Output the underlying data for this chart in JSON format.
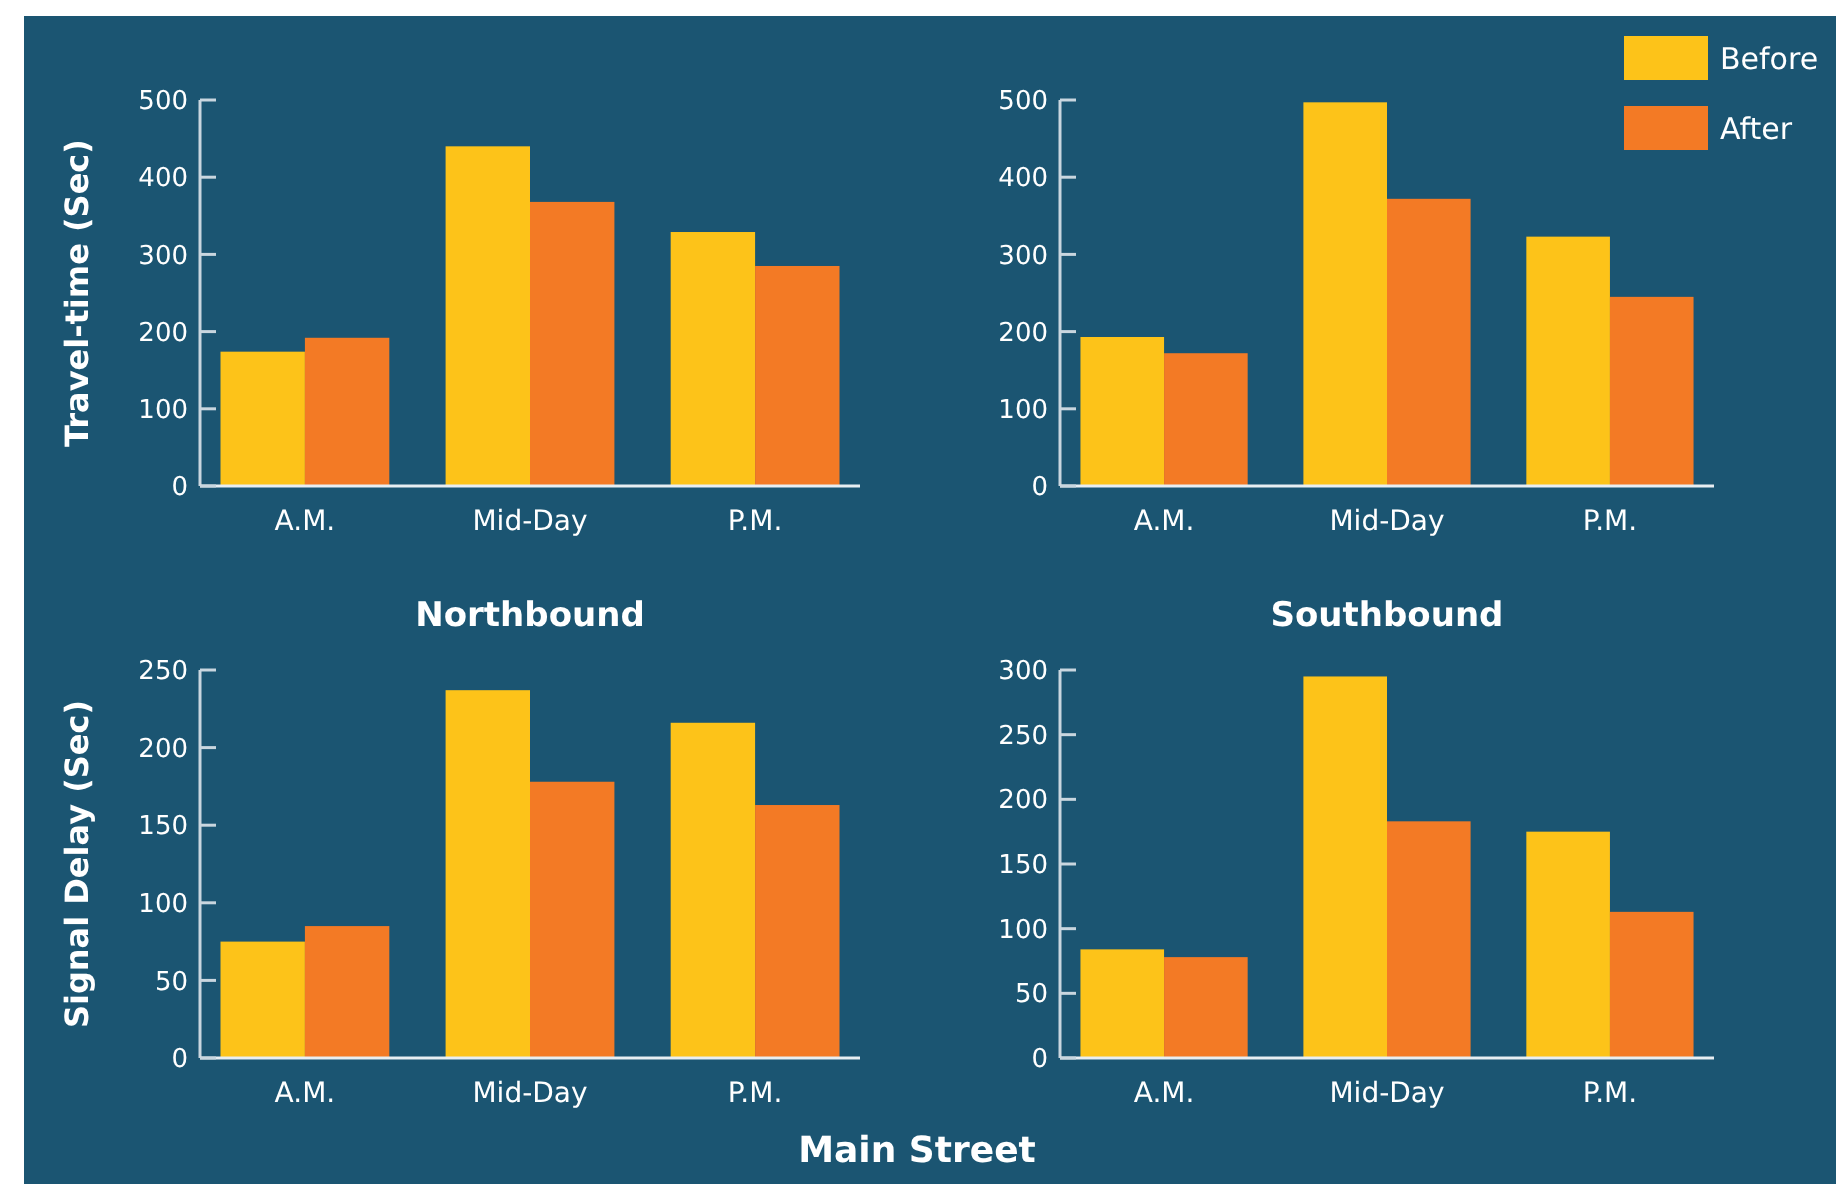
{
  "chart_data": [
    {
      "type": "bar",
      "ylabel": "Travel-time (Sec)",
      "xlabel": "Northbound",
      "categories": [
        "A.M.",
        "Mid-Day",
        "P.M."
      ],
      "ylim": [
        0,
        500
      ],
      "yticks": [
        0,
        100,
        200,
        300,
        400,
        500
      ],
      "legend": false,
      "series": [
        {
          "color": "#fdc319",
          "values": [
            174,
            440,
            329
          ]
        },
        {
          "color": "#f37a25",
          "values": [
            192,
            368,
            285
          ]
        }
      ]
    },
    {
      "type": "bar",
      "xlabel": "Southbound",
      "categories": [
        "A.M.",
        "Mid-Day",
        "P.M."
      ],
      "ylim": [
        0,
        500
      ],
      "yticks": [
        0,
        100,
        200,
        300,
        400,
        500
      ],
      "legend": "top right",
      "series": [
        {
          "name": "Before",
          "color": "#fdc319",
          "values": [
            193,
            497,
            323
          ]
        },
        {
          "name": "After",
          "color": "#f37a25",
          "values": [
            172,
            372,
            245
          ]
        }
      ]
    },
    {
      "type": "bar",
      "ylabel": "Signal Delay (Sec)",
      "xlabel": "Main Street",
      "categories": [
        "A.M.",
        "Mid-Day",
        "P.M."
      ],
      "ylim": [
        0,
        250
      ],
      "yticks": [
        0,
        50,
        100,
        150,
        200,
        250
      ],
      "legend": false,
      "series": [
        {
          "color": "#fdc319",
          "values": [
            75,
            237,
            216
          ]
        },
        {
          "color": "#f37a25",
          "values": [
            85,
            178,
            163
          ]
        }
      ]
    },
    {
      "type": "bar",
      "categories": [
        "A.M.",
        "Mid-Day",
        "P.M."
      ],
      "ylim": [
        0,
        300
      ],
      "yticks": [
        0,
        50,
        100,
        150,
        200,
        250,
        300
      ],
      "legend": false,
      "series": [
        {
          "color": "#fdc319",
          "values": [
            84,
            295,
            175
          ]
        },
        {
          "color": "#f37a25",
          "values": [
            78,
            183,
            113
          ]
        }
      ]
    }
  ]
}
